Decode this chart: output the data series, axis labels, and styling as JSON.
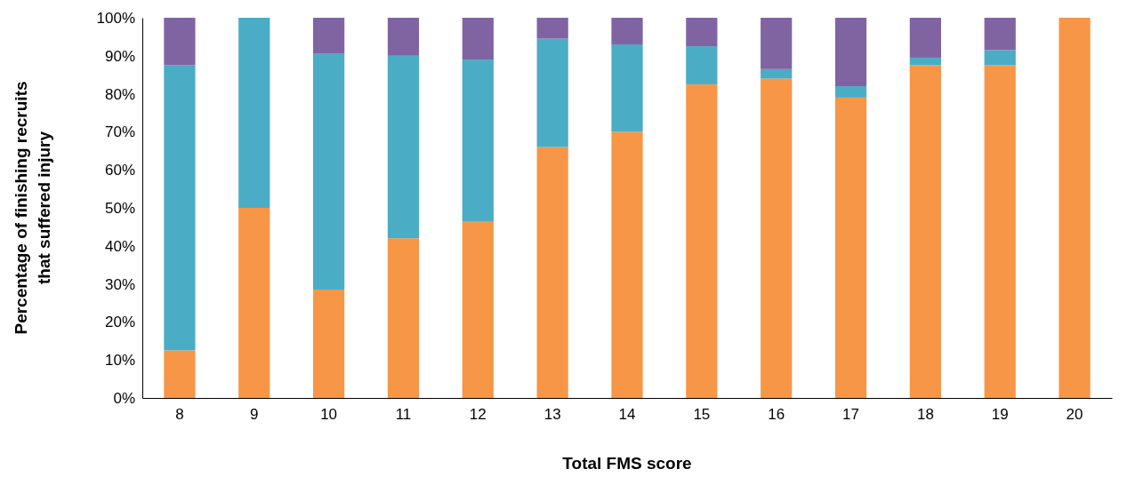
{
  "chart_data": {
    "type": "bar",
    "stacked": true,
    "xlabel": "Total FMS score",
    "ylabel": "Percentage of finishing recruits that suffered injury",
    "categories": [
      "8",
      "9",
      "10",
      "11",
      "12",
      "13",
      "14",
      "15",
      "16",
      "17",
      "18",
      "19",
      "20"
    ],
    "ylim": [
      0,
      100
    ],
    "yticks": [
      {
        "value": 0,
        "label": "0%"
      },
      {
        "value": 10,
        "label": "10%"
      },
      {
        "value": 20,
        "label": "20%"
      },
      {
        "value": 30,
        "label": "30%"
      },
      {
        "value": 40,
        "label": "40%"
      },
      {
        "value": 50,
        "label": "50%"
      },
      {
        "value": 60,
        "label": "60%"
      },
      {
        "value": 70,
        "label": "70%"
      },
      {
        "value": 80,
        "label": "80%"
      },
      {
        "value": 90,
        "label": "90%"
      },
      {
        "value": 100,
        "label": "100%"
      }
    ],
    "series": [
      {
        "color": "#f79646",
        "values": [
          12.5,
          50,
          28.5,
          42,
          46.5,
          66,
          70,
          82.5,
          84,
          79,
          87.5,
          87.5,
          100
        ]
      },
      {
        "color": "#4bacc6",
        "values": [
          75,
          50,
          62,
          48,
          42.5,
          28.5,
          23,
          10,
          2.5,
          3,
          2,
          4,
          0
        ]
      },
      {
        "color": "#8064a2",
        "values": [
          12.5,
          0,
          9.5,
          10,
          11,
          5.5,
          7,
          7.5,
          13.5,
          18,
          10.5,
          8.5,
          0
        ]
      }
    ]
  }
}
